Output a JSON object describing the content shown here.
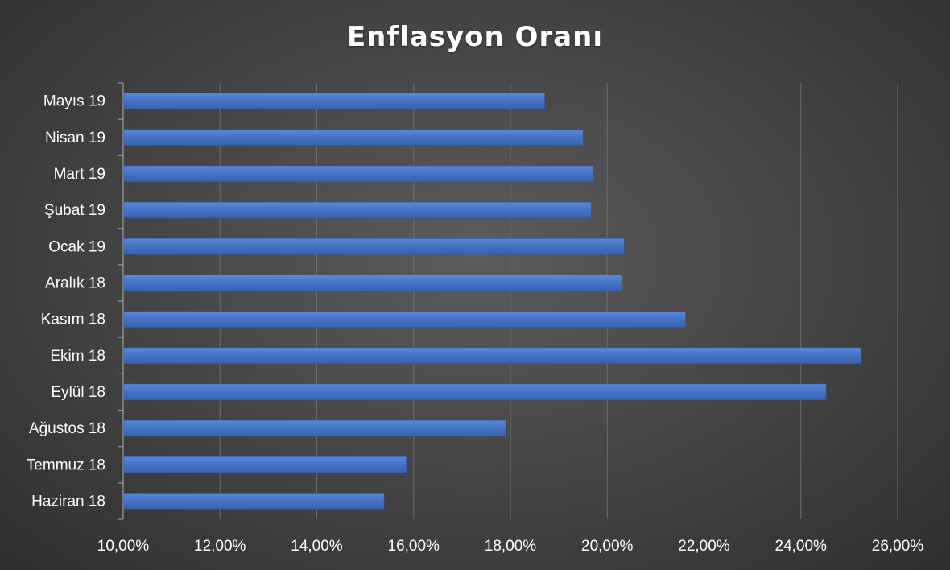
{
  "chart_data": {
    "type": "bar",
    "orientation": "horizontal",
    "title": "Enflasyon Oranı",
    "categories": [
      "Haziran 18",
      "Temmuz 18",
      "Ağustos 18",
      "Eylül 18",
      "Ekim 18",
      "Kasım 18",
      "Aralık 18",
      "Ocak 19",
      "Şubat 19",
      "Mart 19",
      "Nisan 19",
      "Mayıs 19"
    ],
    "values": [
      15.39,
      15.85,
      17.9,
      24.52,
      25.24,
      21.62,
      20.3,
      20.35,
      19.67,
      19.71,
      19.5,
      18.71
    ],
    "xlim": [
      10,
      26
    ],
    "x_ticks": [
      "10,00%",
      "12,00%",
      "14,00%",
      "16,00%",
      "18,00%",
      "20,00%",
      "22,00%",
      "24,00%",
      "26,00%"
    ],
    "xlabel": "",
    "ylabel": "",
    "grid": "vertical",
    "bar_color": "#4472c4",
    "background": "dark"
  }
}
